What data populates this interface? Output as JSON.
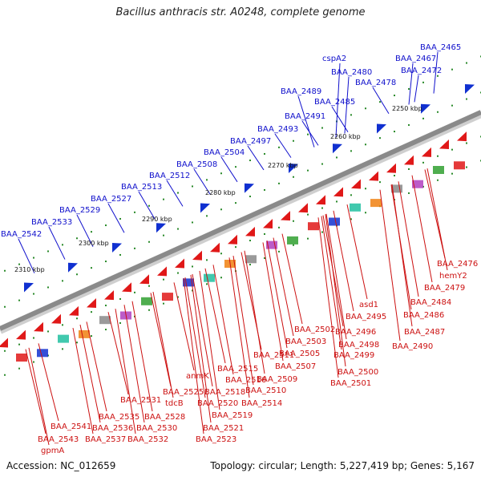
{
  "title": "Bacillus anthracis str. A0248, complete genome",
  "accession": "Accession: NC_012659",
  "summary": "Topology: circular; Length: 5,227,419 bp; Genes: 5,167",
  "colors": {
    "forward_label": "#1010cc",
    "reverse_label": "#cc1111",
    "backbone": "#8a8a8a",
    "tick": "#2a8a2a"
  },
  "kbp_markers": [
    "2250 kbp",
    "2260 kbp",
    "2270 kbp",
    "2280 kbp",
    "2290 kbp",
    "2300 kbp",
    "2310 kbp"
  ],
  "forward_genes": [
    "BAA_2465",
    "BAA_2467",
    "cspA2",
    "BAA_2472",
    "BAA_2480",
    "BAA_2478",
    "BAA_2485",
    "BAA_2489",
    "BAA_2491",
    "BAA_2493",
    "BAA_2497",
    "BAA_2504",
    "BAA_2508",
    "BAA_2512",
    "BAA_2513",
    "BAA_2527",
    "BAA_2529",
    "BAA_2533",
    "BAA_2542"
  ],
  "reverse_genes": [
    "BAA_2476",
    "hemY2",
    "BAA_2479",
    "BAA_2484",
    "BAA_2486",
    "asd1",
    "BAA_2495",
    "BAA_2487",
    "BAA_2496",
    "BAA_2490",
    "BAA_2498",
    "BAA_2499",
    "BAA_2502",
    "BAA_2503",
    "BAA_2505",
    "BAA_2507",
    "BAA_2500",
    "BAA_2501",
    "BAA_2511",
    "BAA_2509",
    "BAA_2515",
    "BAA_2516",
    "BAA_2510",
    "anmK",
    "BAA_2518",
    "BAA_2514",
    "BAA_2525",
    "BAA_2520",
    "tdcB",
    "BAA_2519",
    "BAA_2531",
    "BAA_2521",
    "BAA_2528",
    "BAA_2523",
    "BAA_2535",
    "BAA_2530",
    "BAA_2541",
    "BAA_2536",
    "BAA_2532",
    "BAA_2537",
    "BAA_2543",
    "gpmA"
  ]
}
